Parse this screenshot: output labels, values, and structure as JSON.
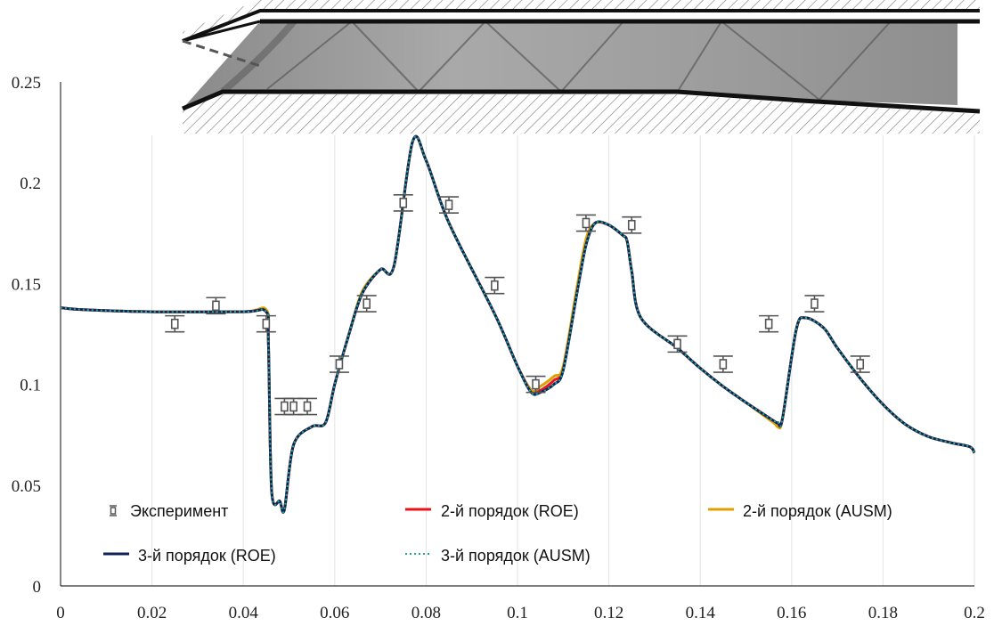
{
  "chart_data": {
    "type": "line",
    "title": "",
    "xlabel": "",
    "ylabel": "",
    "xlim": [
      0,
      0.2
    ],
    "ylim": [
      0,
      0.25
    ],
    "x_ticks": [
      "0",
      "0.02",
      "0.04",
      "0.06",
      "0.08",
      "0.1",
      "0.12",
      "0.14",
      "0.16",
      "0.18",
      "0.2"
    ],
    "y_ticks": [
      "0",
      "0.05",
      "0.1",
      "0.15",
      "0.2",
      "0.25"
    ],
    "grid": "vertical",
    "legend_position": "bottom-inside",
    "inset_image": "schlieren channel photograph with hatched walls, top of plot",
    "experiment": {
      "name": "Эксперимент",
      "points": [
        {
          "x": 0.025,
          "y": 0.13
        },
        {
          "x": 0.034,
          "y": 0.139
        },
        {
          "x": 0.045,
          "y": 0.13
        },
        {
          "x": 0.049,
          "y": 0.089
        },
        {
          "x": 0.051,
          "y": 0.089
        },
        {
          "x": 0.054,
          "y": 0.089
        },
        {
          "x": 0.061,
          "y": 0.11
        },
        {
          "x": 0.067,
          "y": 0.14
        },
        {
          "x": 0.075,
          "y": 0.19
        },
        {
          "x": 0.085,
          "y": 0.189
        },
        {
          "x": 0.095,
          "y": 0.149
        },
        {
          "x": 0.104,
          "y": 0.1
        },
        {
          "x": 0.115,
          "y": 0.18
        },
        {
          "x": 0.125,
          "y": 0.179
        },
        {
          "x": 0.135,
          "y": 0.12
        },
        {
          "x": 0.145,
          "y": 0.11
        },
        {
          "x": 0.155,
          "y": 0.13
        },
        {
          "x": 0.165,
          "y": 0.14
        },
        {
          "x": 0.175,
          "y": 0.11
        }
      ],
      "error": 0.004,
      "color": "#555555"
    },
    "x": [
      0,
      0.005,
      0.02,
      0.04,
      0.045,
      0.0455,
      0.0462,
      0.048,
      0.049,
      0.051,
      0.055,
      0.058,
      0.06,
      0.063,
      0.066,
      0.07,
      0.073,
      0.077,
      0.08,
      0.085,
      0.095,
      0.1,
      0.103,
      0.105,
      0.108,
      0.11,
      0.113,
      0.115,
      0.117,
      0.12,
      0.123,
      0.124,
      0.125,
      0.127,
      0.135,
      0.14,
      0.145,
      0.15,
      0.156,
      0.157,
      0.158,
      0.161,
      0.163,
      0.167,
      0.17,
      0.175,
      0.18,
      0.185,
      0.19,
      0.195,
      0.199,
      0.2
    ],
    "series": [
      {
        "name": "2-й порядок (ROE)",
        "color": "#e8141b",
        "dash": "solid",
        "values": [
          0.138,
          0.137,
          0.136,
          0.136,
          0.136,
          0.12,
          0.047,
          0.042,
          0.038,
          0.07,
          0.079,
          0.081,
          0.1,
          0.124,
          0.145,
          0.157,
          0.159,
          0.22,
          0.211,
          0.18,
          0.135,
          0.109,
          0.097,
          0.097,
          0.102,
          0.108,
          0.146,
          0.17,
          0.18,
          0.179,
          0.174,
          0.171,
          0.156,
          0.133,
          0.118,
          0.108,
          0.099,
          0.091,
          0.082,
          0.08,
          0.083,
          0.127,
          0.133,
          0.128,
          0.118,
          0.103,
          0.09,
          0.08,
          0.074,
          0.071,
          0.069,
          0.066
        ]
      },
      {
        "name": "2-й порядок (AUSM)",
        "color": "#e0a100",
        "dash": "solid",
        "values": [
          0.138,
          0.137,
          0.136,
          0.136,
          0.137,
          0.12,
          0.047,
          0.042,
          0.038,
          0.07,
          0.079,
          0.081,
          0.1,
          0.124,
          0.146,
          0.157,
          0.159,
          0.22,
          0.211,
          0.18,
          0.135,
          0.109,
          0.097,
          0.099,
          0.104,
          0.109,
          0.148,
          0.172,
          0.18,
          0.179,
          0.174,
          0.171,
          0.156,
          0.133,
          0.118,
          0.108,
          0.099,
          0.091,
          0.081,
          0.079,
          0.083,
          0.127,
          0.133,
          0.128,
          0.118,
          0.103,
          0.09,
          0.08,
          0.074,
          0.071,
          0.069,
          0.066
        ]
      },
      {
        "name": "3-й порядок (ROE)",
        "color": "#13205a",
        "dash": "solid",
        "values": [
          0.138,
          0.137,
          0.136,
          0.136,
          0.136,
          0.12,
          0.047,
          0.042,
          0.038,
          0.07,
          0.079,
          0.081,
          0.1,
          0.124,
          0.145,
          0.157,
          0.159,
          0.22,
          0.211,
          0.18,
          0.135,
          0.109,
          0.096,
          0.096,
          0.1,
          0.107,
          0.145,
          0.169,
          0.18,
          0.179,
          0.174,
          0.171,
          0.156,
          0.133,
          0.118,
          0.108,
          0.099,
          0.091,
          0.082,
          0.081,
          0.083,
          0.127,
          0.133,
          0.128,
          0.118,
          0.103,
          0.09,
          0.08,
          0.074,
          0.071,
          0.069,
          0.066
        ]
      },
      {
        "name": "3-й порядок (AUSM)",
        "color": "#1fae8c",
        "dash": "dotted",
        "values": [
          0.138,
          0.137,
          0.136,
          0.136,
          0.136,
          0.12,
          0.047,
          0.042,
          0.038,
          0.07,
          0.079,
          0.081,
          0.1,
          0.124,
          0.145,
          0.157,
          0.159,
          0.22,
          0.211,
          0.18,
          0.135,
          0.109,
          0.096,
          0.096,
          0.1,
          0.107,
          0.145,
          0.169,
          0.18,
          0.179,
          0.174,
          0.171,
          0.156,
          0.133,
          0.118,
          0.108,
          0.099,
          0.091,
          0.082,
          0.081,
          0.083,
          0.127,
          0.133,
          0.128,
          0.118,
          0.103,
          0.09,
          0.08,
          0.074,
          0.071,
          0.069,
          0.066
        ]
      }
    ]
  }
}
